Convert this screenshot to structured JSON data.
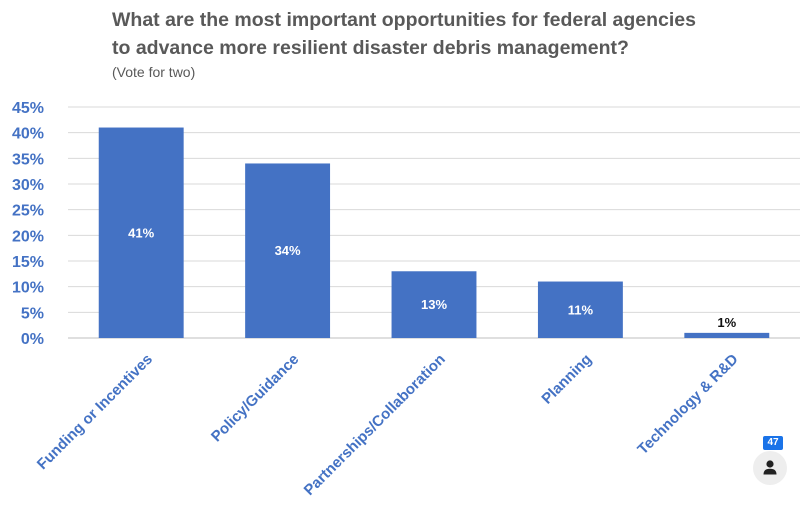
{
  "chart_data": {
    "type": "bar",
    "title_line1": "What are the most important opportunities for federal agencies",
    "title_line2": "to advance more resilient disaster debris management?",
    "subtitle": "(Vote for two)",
    "categories": [
      "Funding or Incentives",
      "Policy/Guidance",
      "Partnerships/Collaboration",
      "Planning",
      "Technology & R&D"
    ],
    "values": [
      41,
      34,
      13,
      11,
      1
    ],
    "data_labels": [
      "41%",
      "34%",
      "13%",
      "11%",
      "1%"
    ],
    "ylim": [
      0,
      45
    ],
    "yticks": [
      0,
      5,
      10,
      15,
      20,
      25,
      30,
      35,
      40,
      45
    ],
    "ytick_labels": [
      "0%",
      "5%",
      "10%",
      "15%",
      "20%",
      "25%",
      "30%",
      "35%",
      "40%",
      "45%"
    ],
    "grid": true,
    "bar_color": "#4472c4",
    "axis_label_color": "#4472c4"
  },
  "participant_badge": {
    "count": "47",
    "icon": "person-icon"
  }
}
